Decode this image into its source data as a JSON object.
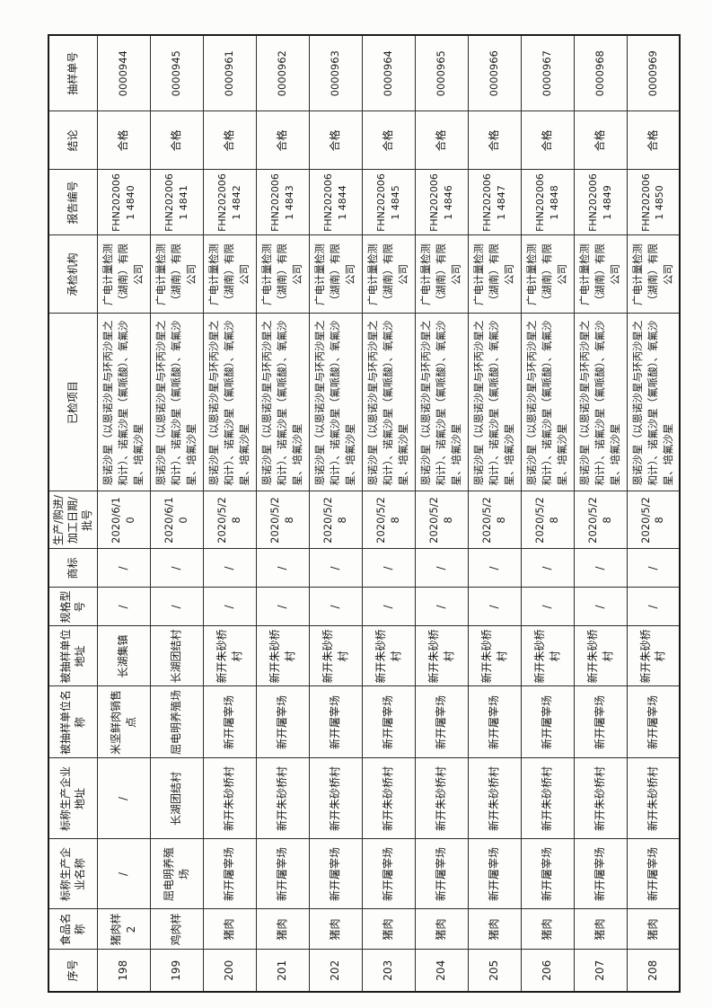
{
  "table": {
    "headers": [
      "序号",
      "食品名称",
      "标称生产企业名称",
      "标称生产企业地址",
      "被抽样单位名称",
      "被抽样单位地址",
      "规格型号",
      "商标",
      "生产/购进/加工日期/批号",
      "已检项目",
      "承检机构",
      "报告编号",
      "结论",
      "抽样单号"
    ],
    "column_keys": [
      "seq",
      "food_name",
      "producer_name",
      "producer_address",
      "sampled_unit_name",
      "sampled_unit_address",
      "spec_model",
      "brand",
      "production_date",
      "tested_items",
      "inspection_agency",
      "report_no",
      "conclusion",
      "sample_no"
    ],
    "rows": [
      {
        "seq": "198",
        "food_name": "猪肉样2",
        "producer_name": "/",
        "producer_address": "/",
        "sampled_unit_name": "米坚鲜肉销售点",
        "sampled_unit_address": "长湖集镇",
        "spec_model": "/",
        "brand": "/",
        "production_date": "2020/6/10",
        "tested_items": "恩诺沙星（以恩诺沙星与环丙沙星之和计）、诺氟沙星（氟哌酸）、氧氟沙星、培氟沙星",
        "inspection_agency": "广电计量检测（湖南）有限公司",
        "report_no": "FHN2020061 4840",
        "conclusion": "合格",
        "sample_no": "0000944"
      },
      {
        "seq": "199",
        "food_name": "鸡肉样",
        "producer_name": "屈电明养殖场",
        "producer_address": "长湖团结村",
        "sampled_unit_name": "屈电明养殖场",
        "sampled_unit_address": "长湖团结村",
        "spec_model": "/",
        "brand": "/",
        "production_date": "2020/6/10",
        "tested_items": "恩诺沙星（以恩诺沙星与环丙沙星之和计）、诺氟沙星（氟哌酸）、氧氟沙星、培氟沙星",
        "inspection_agency": "广电计量检测（湖南）有限公司",
        "report_no": "FHN2020061 4841",
        "conclusion": "合格",
        "sample_no": "0000945"
      },
      {
        "seq": "200",
        "food_name": "猪肉",
        "producer_name": "新开屠宰场",
        "producer_address": "新开朱砂桥村",
        "sampled_unit_name": "新开屠宰场",
        "sampled_unit_address": "新开朱砂桥村",
        "spec_model": "/",
        "brand": "/",
        "production_date": "2020/5/28",
        "tested_items": "恩诺沙星（以恩诺沙星与环丙沙星之和计）、诺氟沙星（氟哌酸）、氧氟沙星、培氟沙星",
        "inspection_agency": "广电计量检测（湖南）有限公司",
        "report_no": "FHN2020061 4842",
        "conclusion": "合格",
        "sample_no": "0000961"
      },
      {
        "seq": "201",
        "food_name": "猪肉",
        "producer_name": "新开屠宰场",
        "producer_address": "新开朱砂桥村",
        "sampled_unit_name": "新开屠宰场",
        "sampled_unit_address": "新开朱砂桥村",
        "spec_model": "/",
        "brand": "/",
        "production_date": "2020/5/28",
        "tested_items": "恩诺沙星（以恩诺沙星与环丙沙星之和计）、诺氟沙星（氟哌酸）、氧氟沙星、培氟沙星",
        "inspection_agency": "广电计量检测（湖南）有限公司",
        "report_no": "FHN2020061 4843",
        "conclusion": "合格",
        "sample_no": "0000962"
      },
      {
        "seq": "202",
        "food_name": "猪肉",
        "producer_name": "新开屠宰场",
        "producer_address": "新开朱砂桥村",
        "sampled_unit_name": "新开屠宰场",
        "sampled_unit_address": "新开朱砂桥村",
        "spec_model": "/",
        "brand": "/",
        "production_date": "2020/5/28",
        "tested_items": "恩诺沙星（以恩诺沙星与环丙沙星之和计）、诺氟沙星（氟哌酸）、氧氟沙星、培氟沙星",
        "inspection_agency": "广电计量检测（湖南）有限公司",
        "report_no": "FHN2020061 4844",
        "conclusion": "合格",
        "sample_no": "0000963"
      },
      {
        "seq": "203",
        "food_name": "猪肉",
        "producer_name": "新开屠宰场",
        "producer_address": "新开朱砂桥村",
        "sampled_unit_name": "新开屠宰场",
        "sampled_unit_address": "新开朱砂桥村",
        "spec_model": "/",
        "brand": "/",
        "production_date": "2020/5/28",
        "tested_items": "恩诺沙星（以恩诺沙星与环丙沙星之和计）、诺氟沙星（氟哌酸）、氧氟沙星、培氟沙星",
        "inspection_agency": "广电计量检测（湖南）有限公司",
        "report_no": "FHN2020061 4845",
        "conclusion": "合格",
        "sample_no": "0000964"
      },
      {
        "seq": "204",
        "food_name": "猪肉",
        "producer_name": "新开屠宰场",
        "producer_address": "新开朱砂桥村",
        "sampled_unit_name": "新开屠宰场",
        "sampled_unit_address": "新开朱砂桥村",
        "spec_model": "/",
        "brand": "/",
        "production_date": "2020/5/28",
        "tested_items": "恩诺沙星（以恩诺沙星与环丙沙星之和计）、诺氟沙星（氟哌酸）、氧氟沙星、培氟沙星",
        "inspection_agency": "广电计量检测（湖南）有限公司",
        "report_no": "FHN2020061 4846",
        "conclusion": "合格",
        "sample_no": "0000965"
      },
      {
        "seq": "205",
        "food_name": "猪肉",
        "producer_name": "新开屠宰场",
        "producer_address": "新开朱砂桥村",
        "sampled_unit_name": "新开屠宰场",
        "sampled_unit_address": "新开朱砂桥村",
        "spec_model": "/",
        "brand": "/",
        "production_date": "2020/5/28",
        "tested_items": "恩诺沙星（以恩诺沙星与环丙沙星之和计）、诺氟沙星（氟哌酸）、氧氟沙星、培氟沙星",
        "inspection_agency": "广电计量检测（湖南）有限公司",
        "report_no": "FHN2020061 4847",
        "conclusion": "合格",
        "sample_no": "0000966"
      },
      {
        "seq": "206",
        "food_name": "猪肉",
        "producer_name": "新开屠宰场",
        "producer_address": "新开朱砂桥村",
        "sampled_unit_name": "新开屠宰场",
        "sampled_unit_address": "新开朱砂桥村",
        "spec_model": "/",
        "brand": "/",
        "production_date": "2020/5/28",
        "tested_items": "恩诺沙星（以恩诺沙星与环丙沙星之和计）、诺氟沙星（氟哌酸）、氧氟沙星、培氟沙星",
        "inspection_agency": "广电计量检测（湖南）有限公司",
        "report_no": "FHN2020061 4848",
        "conclusion": "合格",
        "sample_no": "0000967"
      },
      {
        "seq": "207",
        "food_name": "猪肉",
        "producer_name": "新开屠宰场",
        "producer_address": "新开朱砂桥村",
        "sampled_unit_name": "新开屠宰场",
        "sampled_unit_address": "新开朱砂桥村",
        "spec_model": "/",
        "brand": "/",
        "production_date": "2020/5/28",
        "tested_items": "恩诺沙星（以恩诺沙星与环丙沙星之和计）、诺氟沙星（氟哌酸）、氧氟沙星、培氟沙星",
        "inspection_agency": "广电计量检测（湖南）有限公司",
        "report_no": "FHN2020061 4849",
        "conclusion": "合格",
        "sample_no": "0000968"
      },
      {
        "seq": "208",
        "food_name": "猪肉",
        "producer_name": "新开屠宰场",
        "producer_address": "新开朱砂桥村",
        "sampled_unit_name": "新开屠宰场",
        "sampled_unit_address": "新开朱砂桥村",
        "spec_model": "/",
        "brand": "/",
        "production_date": "2020/5/28",
        "tested_items": "恩诺沙星（以恩诺沙星与环丙沙星之和计）、诺氟沙星（氟哌酸）、氧氟沙星、培氟沙星",
        "inspection_agency": "广电计量检测（湖南）有限公司",
        "report_no": "FHN2020061 4850",
        "conclusion": "合格",
        "sample_no": "0000969"
      }
    ]
  }
}
